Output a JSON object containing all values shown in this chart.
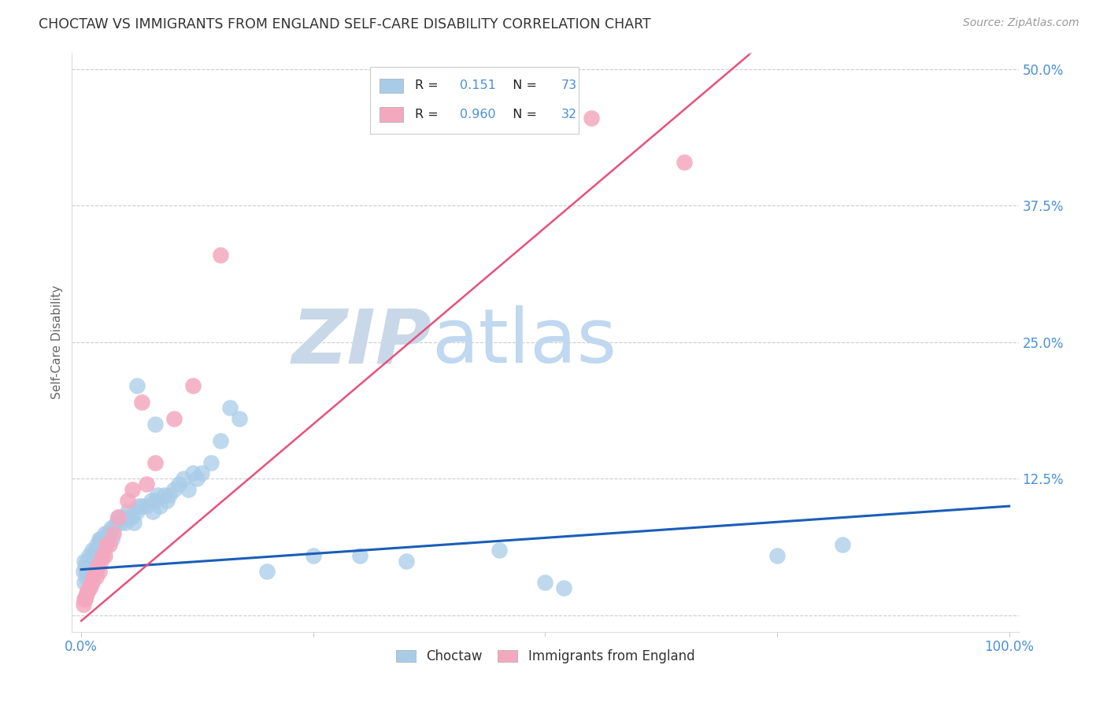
{
  "title": "CHOCTAW VS IMMIGRANTS FROM ENGLAND SELF-CARE DISABILITY CORRELATION CHART",
  "source": "Source: ZipAtlas.com",
  "ylabel": "Self-Care Disability",
  "background_color": "#ffffff",
  "title_color": "#333333",
  "title_fontsize": 12.5,
  "choctaw_R": 0.151,
  "choctaw_N": 73,
  "england_R": 0.96,
  "england_N": 32,
  "choctaw_color": "#a8cce8",
  "england_color": "#f4a8c0",
  "choctaw_line_color": "#1a5eb8",
  "england_line_color": "#e8507a",
  "dashed_line_color": "#bbbbbb",
  "tick_label_color": "#4a90d9",
  "legend_text_color": "#222222",
  "legend_value_color": "#4a90d9",
  "watermark_ZIP_color": "#c8d8e8",
  "watermark_atlas_color": "#c0d8f0",
  "choctaw_x": [
    0.002,
    0.003,
    0.003,
    0.004,
    0.005,
    0.006,
    0.007,
    0.008,
    0.009,
    0.01,
    0.011,
    0.012,
    0.013,
    0.014,
    0.015,
    0.016,
    0.017,
    0.018,
    0.019,
    0.02,
    0.021,
    0.022,
    0.024,
    0.025,
    0.026,
    0.028,
    0.03,
    0.032,
    0.033,
    0.035,
    0.038,
    0.04,
    0.042,
    0.045,
    0.047,
    0.05,
    0.052,
    0.055,
    0.057,
    0.06,
    0.062,
    0.065,
    0.07,
    0.075,
    0.077,
    0.08,
    0.082,
    0.085,
    0.09,
    0.092,
    0.095,
    0.1,
    0.105,
    0.11,
    0.115,
    0.12,
    0.125,
    0.13,
    0.14,
    0.15,
    0.16,
    0.17,
    0.2,
    0.25,
    0.3,
    0.35,
    0.45,
    0.5,
    0.52,
    0.75,
    0.82,
    0.06,
    0.08
  ],
  "choctaw_y": [
    0.04,
    0.05,
    0.03,
    0.045,
    0.035,
    0.04,
    0.05,
    0.055,
    0.04,
    0.045,
    0.05,
    0.06,
    0.055,
    0.05,
    0.06,
    0.055,
    0.065,
    0.06,
    0.07,
    0.055,
    0.07,
    0.065,
    0.07,
    0.075,
    0.065,
    0.075,
    0.075,
    0.08,
    0.07,
    0.08,
    0.085,
    0.09,
    0.085,
    0.09,
    0.085,
    0.095,
    0.09,
    0.09,
    0.085,
    0.095,
    0.1,
    0.1,
    0.1,
    0.105,
    0.095,
    0.105,
    0.11,
    0.1,
    0.11,
    0.105,
    0.11,
    0.115,
    0.12,
    0.125,
    0.115,
    0.13,
    0.125,
    0.13,
    0.14,
    0.16,
    0.19,
    0.18,
    0.04,
    0.055,
    0.055,
    0.05,
    0.06,
    0.03,
    0.025,
    0.055,
    0.065,
    0.21,
    0.175
  ],
  "england_x": [
    0.002,
    0.003,
    0.004,
    0.005,
    0.006,
    0.007,
    0.008,
    0.009,
    0.01,
    0.012,
    0.013,
    0.015,
    0.016,
    0.018,
    0.019,
    0.021,
    0.023,
    0.025,
    0.027,
    0.03,
    0.035,
    0.04,
    0.05,
    0.055,
    0.065,
    0.07,
    0.08,
    0.1,
    0.12,
    0.55,
    0.65,
    0.15
  ],
  "england_y": [
    0.01,
    0.015,
    0.015,
    0.018,
    0.02,
    0.022,
    0.025,
    0.025,
    0.028,
    0.03,
    0.035,
    0.04,
    0.035,
    0.045,
    0.04,
    0.05,
    0.055,
    0.055,
    0.065,
    0.065,
    0.075,
    0.09,
    0.105,
    0.115,
    0.195,
    0.12,
    0.14,
    0.18,
    0.21,
    0.455,
    0.415,
    0.33
  ],
  "choctaw_slope": 0.058,
  "choctaw_intercept": 0.042,
  "england_slope": 0.72,
  "england_intercept": -0.005,
  "england_line_end": 0.72,
  "dashed_line_start": 0.72,
  "xlim": [
    -0.01,
    1.01
  ],
  "ylim": [
    -0.015,
    0.515
  ],
  "xticks": [
    0.0,
    0.25,
    0.5,
    0.75,
    1.0
  ],
  "yticks": [
    0.0,
    0.125,
    0.25,
    0.375,
    0.5
  ],
  "xtick_labels": [
    "0.0%",
    "",
    "",
    "",
    "100.0%"
  ],
  "ytick_labels": [
    "",
    "12.5%",
    "25.0%",
    "37.5%",
    "50.0%"
  ]
}
